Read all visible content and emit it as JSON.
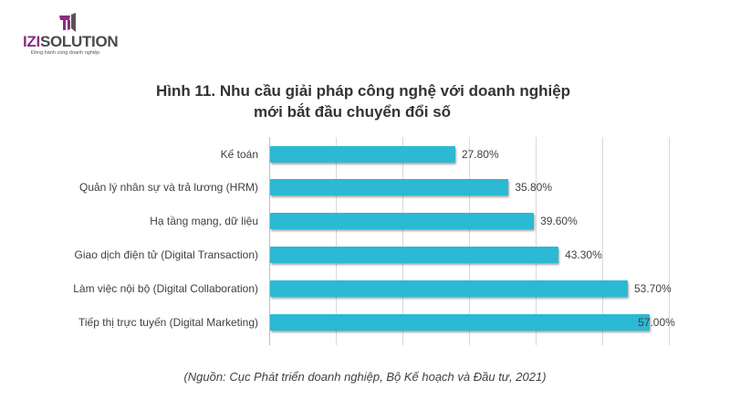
{
  "logo": {
    "brand_prefix": "IZI",
    "brand_suffix": "SOLUTION",
    "tagline": "Đồng hành cùng doanh nghiệp",
    "colors": {
      "purple": "#8a2f7d",
      "gray": "#4a4a4a"
    }
  },
  "title": {
    "line1": "Hình 11. Nhu cầu giải pháp công nghệ với doanh nghiệp",
    "line2": "mới bắt đầu chuyển đổi số"
  },
  "source": "(Nguồn: Cục Phát triển doanh nghiệp, Bộ Kế hoạch và Đầu tư, 2021)",
  "bar_color": "#2bb9d3",
  "chart_data": {
    "type": "bar",
    "orientation": "horizontal",
    "title": "Hình 11. Nhu cầu giải pháp công nghệ với doanh nghiệp mới bắt đầu chuyển đổi số",
    "categories": [
      "Kế toán",
      "Quản lý nhân sự và trả lương (HRM)",
      "Hạ tầng mạng, dữ liệu",
      "Giao dịch điện tử (Digital Transaction)",
      "Làm việc nội bộ (Digital Collaboration)",
      "Tiếp thị trực tuyến (Digital Marketing)"
    ],
    "values": [
      27.8,
      35.8,
      39.6,
      43.3,
      53.7,
      57.0
    ],
    "value_labels": [
      "27.80%",
      "35.80%",
      "39.60%",
      "43.30%",
      "53.70%",
      "57.00%"
    ],
    "xlabel": "",
    "ylabel": "",
    "xlim": [
      0,
      60
    ],
    "grid": true,
    "gridline_step": 10,
    "legend": null,
    "source": "(Nguồn: Cục Phát triển doanh nghiệp, Bộ Kế hoạch và Đầu tư, 2021)"
  }
}
